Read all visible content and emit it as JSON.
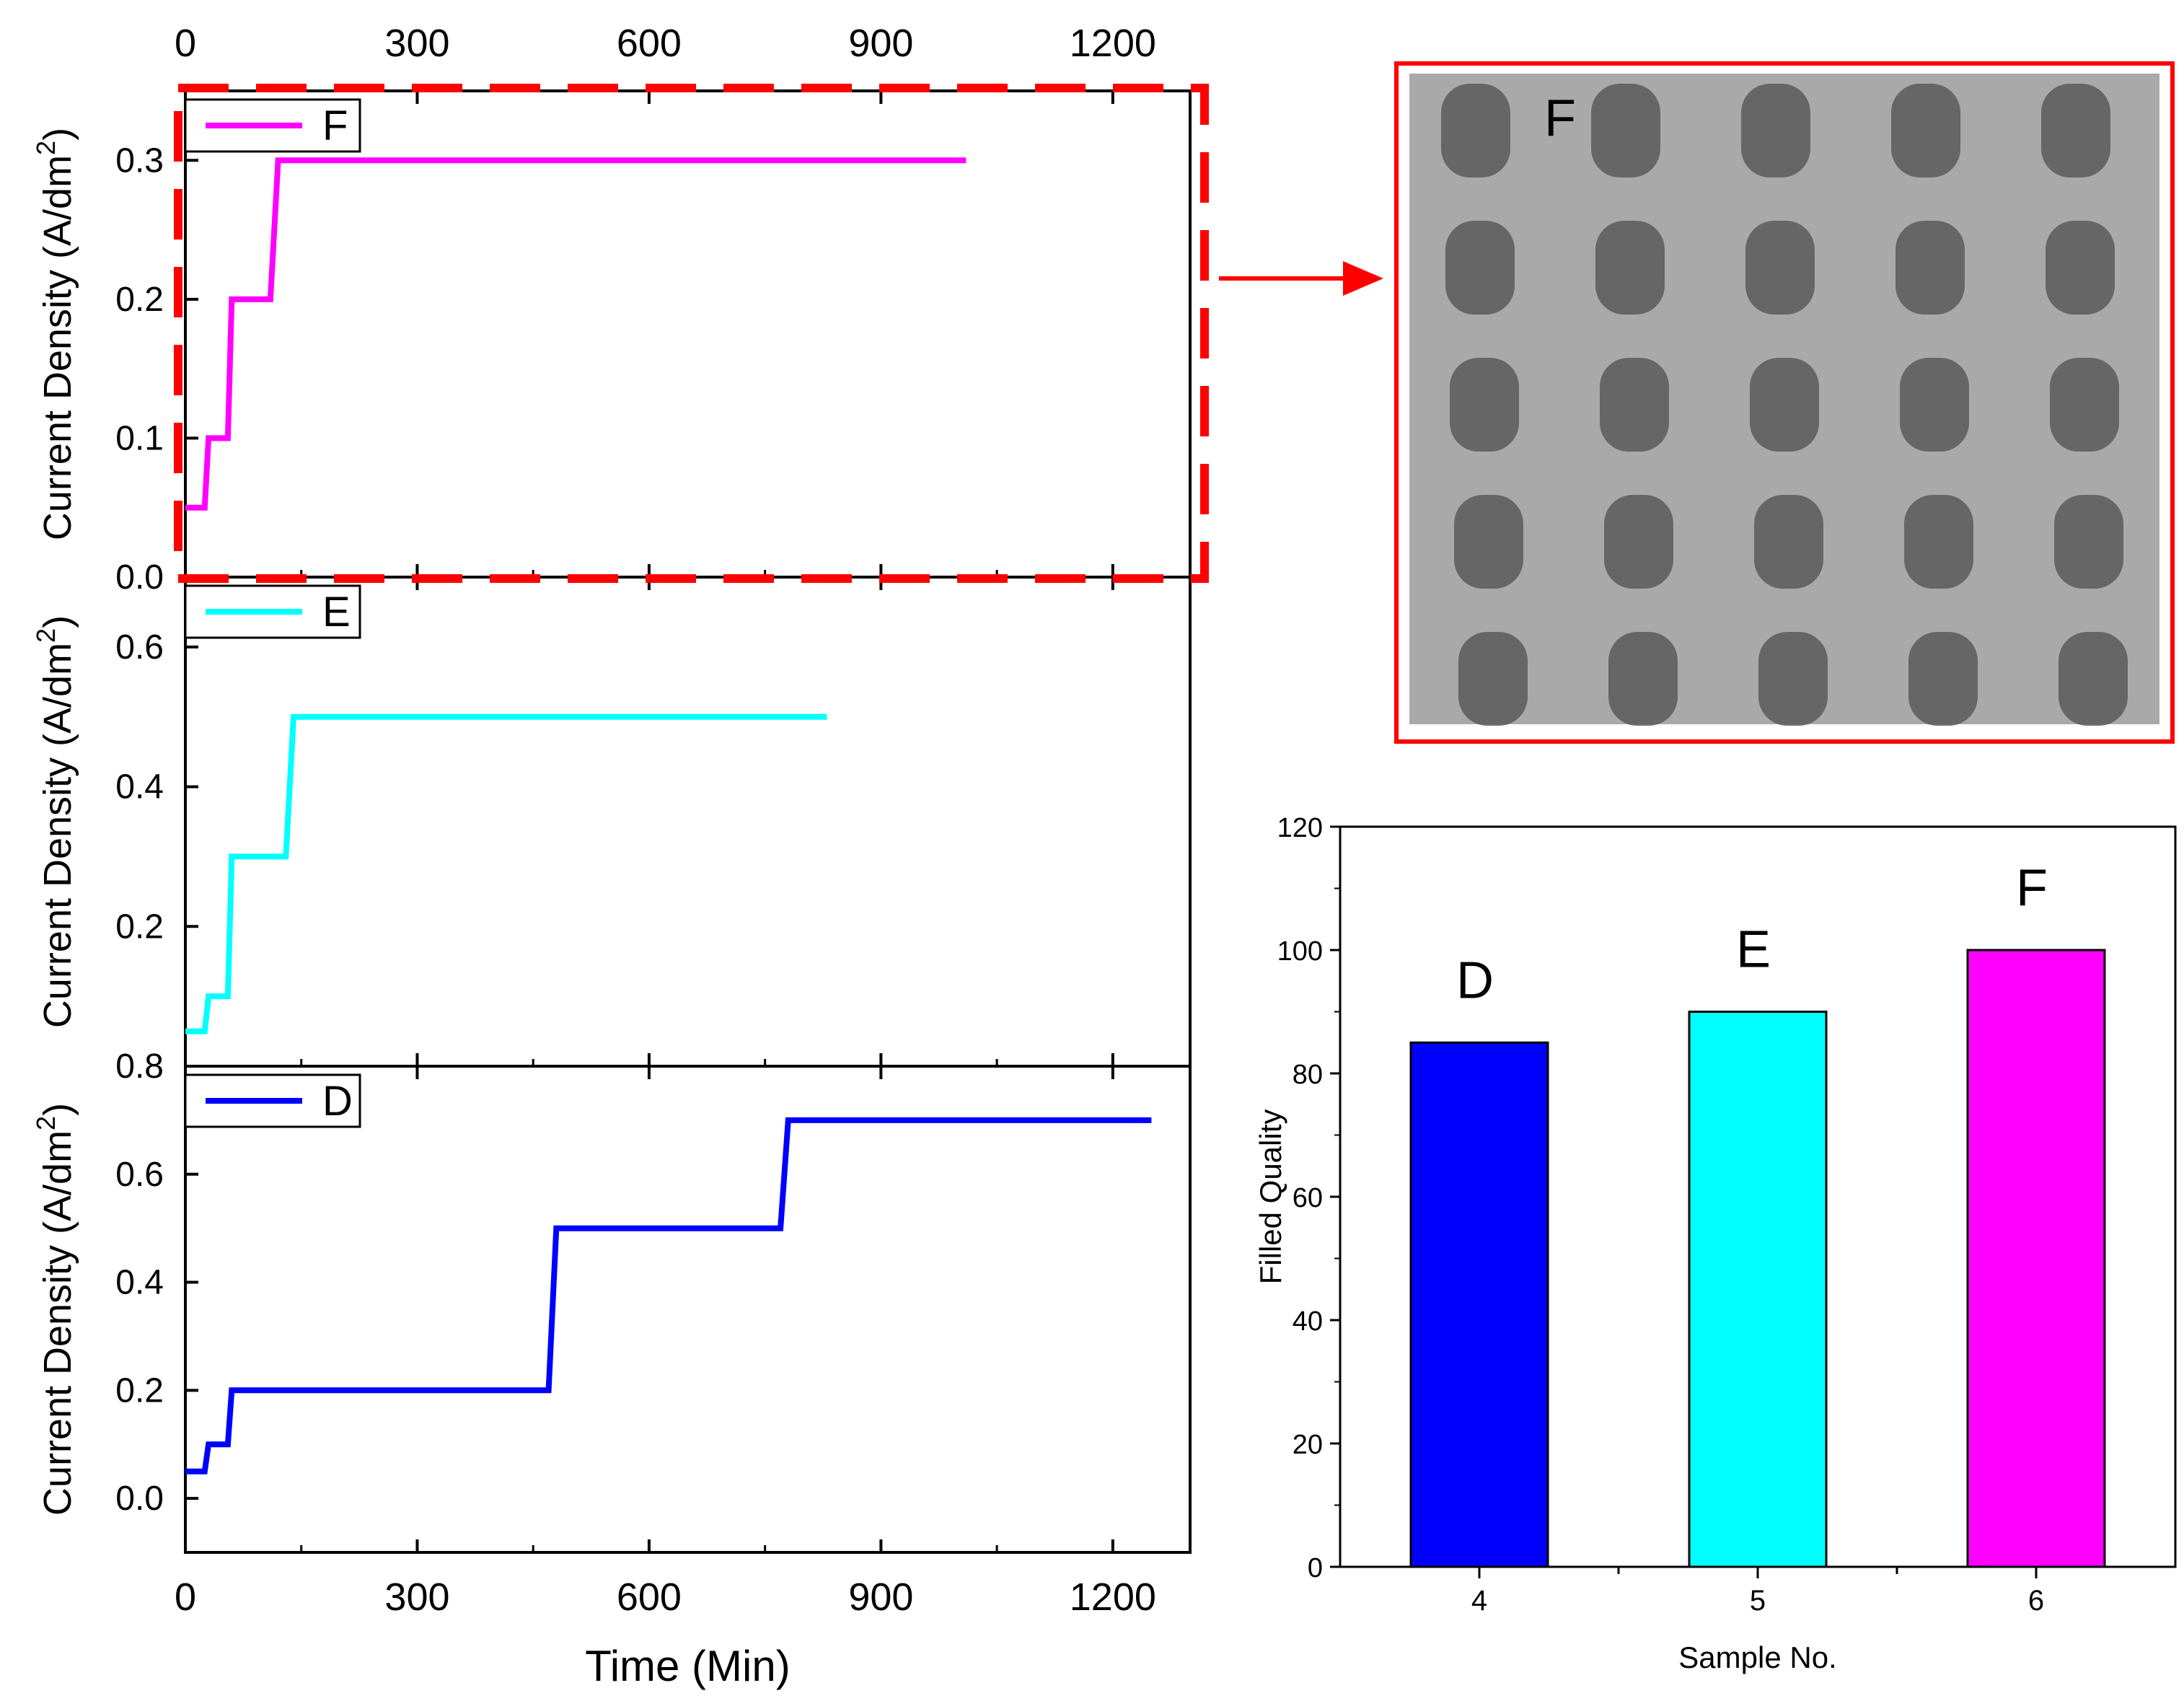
{
  "figure": {
    "colors": {
      "axis": "#000000",
      "highlight": "#ff0000",
      "photo_bg": "#a9a9a9",
      "photo_dot": "#5a5a5a"
    }
  },
  "chart_data": [
    {
      "id": "panel-F",
      "type": "line",
      "ylabel": "Current Density (A/dm²)",
      "top_axis_ticks": [
        "0",
        "300",
        "600",
        "900",
        "1200"
      ],
      "xlim": [
        0,
        1300
      ],
      "ylim": [
        0,
        0.35
      ],
      "yticks": [
        "0.0",
        "0.1",
        "0.2",
        "0.3"
      ],
      "legend": "F",
      "series": [
        {
          "name": "F",
          "color": "#ff00ff",
          "x": [
            0,
            25,
            30,
            55,
            60,
            110,
            120,
            1010
          ],
          "y": [
            0.05,
            0.05,
            0.1,
            0.1,
            0.2,
            0.2,
            0.3,
            0.3
          ]
        }
      ]
    },
    {
      "id": "panel-E",
      "type": "line",
      "ylabel": "Current Density (A/dm²)",
      "xlim": [
        0,
        1300
      ],
      "ylim": [
        0,
        0.7
      ],
      "yticks": [
        "0.8",
        "0.6",
        "0.4",
        "0.2"
      ],
      "legend": "E",
      "series": [
        {
          "name": "E",
          "color": "#00ffff",
          "x": [
            0,
            25,
            30,
            55,
            60,
            130,
            140,
            830
          ],
          "y": [
            0.05,
            0.05,
            0.1,
            0.1,
            0.3,
            0.3,
            0.5,
            0.5
          ]
        }
      ]
    },
    {
      "id": "panel-D",
      "type": "line",
      "xlabel": "Time (Min)",
      "ylabel": "Current Density (A/dm²)",
      "xlim": [
        0,
        1300
      ],
      "ylim": [
        -0.1,
        0.8
      ],
      "xticks": [
        "0",
        "300",
        "600",
        "900",
        "1200"
      ],
      "yticks": [
        "0.0",
        "0.2",
        "0.4",
        "0.6"
      ],
      "legend": "D",
      "series": [
        {
          "name": "D",
          "color": "#0000ff",
          "x": [
            0,
            25,
            30,
            55,
            60,
            470,
            480,
            770,
            780,
            1250
          ],
          "y": [
            0.05,
            0.05,
            0.1,
            0.1,
            0.2,
            0.2,
            0.5,
            0.5,
            0.7,
            0.7
          ]
        }
      ]
    },
    {
      "id": "bar-chart",
      "type": "bar",
      "xlabel": "Sample No.",
      "ylabel": "Filled Quality",
      "ylim": [
        0,
        120
      ],
      "yticks": [
        "0",
        "20",
        "40",
        "60",
        "80",
        "100",
        "120"
      ],
      "categories": [
        "4",
        "5",
        "6"
      ],
      "values": [
        85,
        90,
        100
      ],
      "bar_labels": [
        "D",
        "E",
        "F"
      ],
      "colors": [
        "#0000ff",
        "#00ffff",
        "#ff00ff"
      ]
    }
  ],
  "photo": {
    "label": "F",
    "rows": 5,
    "cols": 5
  }
}
